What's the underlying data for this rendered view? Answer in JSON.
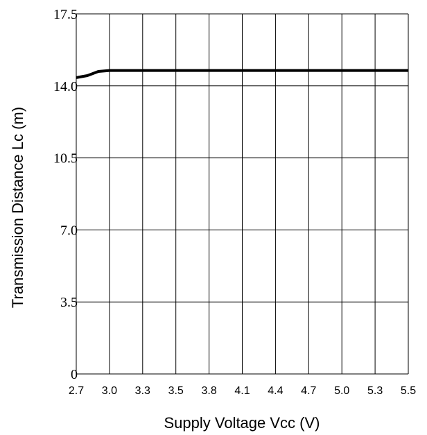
{
  "chart_data": {
    "type": "line",
    "title": "",
    "xlabel": "Supply Voltage Vcc (V)",
    "ylabel": "Transmission Distance Lc (m)",
    "x_tick_labels": [
      "2.7",
      "3.0",
      "3.3",
      "3.5",
      "3.8",
      "4.1",
      "4.4",
      "4.7",
      "5.0",
      "5.3",
      "5.5"
    ],
    "y_tick_labels": [
      "0",
      "3.5",
      "7.0",
      "10.5",
      "14.0",
      "17.5"
    ],
    "y_ticks": [
      0,
      3.5,
      7.0,
      10.5,
      14.0,
      17.5
    ],
    "ylim": [
      0,
      17.5
    ],
    "grid": true,
    "series": [
      {
        "x": [
          2.7,
          2.8,
          2.9,
          3.0,
          3.3,
          3.5,
          3.8,
          4.1,
          4.4,
          4.7,
          5.0,
          5.3,
          5.5
        ],
        "y": [
          14.4,
          14.5,
          14.7,
          14.75,
          14.75,
          14.75,
          14.75,
          14.75,
          14.75,
          14.75,
          14.75,
          14.75,
          14.75
        ]
      }
    ],
    "colors": {
      "line": "#000000",
      "grid": "#000000",
      "background": "#ffffff"
    }
  }
}
